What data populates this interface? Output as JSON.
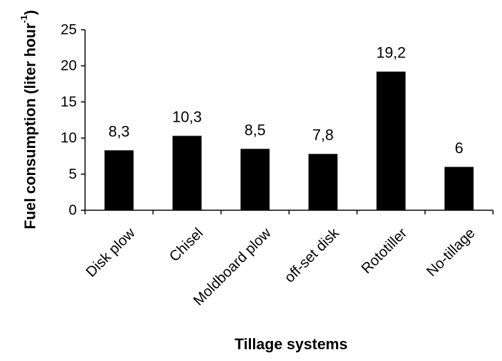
{
  "chart_data": {
    "type": "bar",
    "categories": [
      "Disk plow",
      "Chisel",
      "Moldboard plow",
      "off-set disk",
      "Rototiller",
      "No-tillage"
    ],
    "values": [
      8.3,
      10.3,
      8.5,
      7.8,
      19.2,
      6
    ],
    "data_labels": [
      "8,3",
      "10,3",
      "8,5",
      "7,8",
      "19,2",
      "6"
    ],
    "xlabel": "Tillage systems",
    "ylabel": {
      "main": "Fuel consumption (liter hour",
      "superscript": "-1",
      "close": ")"
    },
    "ylim": [
      0,
      25
    ],
    "yticks": [
      0,
      5,
      10,
      15,
      20,
      25
    ],
    "grid": false,
    "legend": "none",
    "bar_color": "#000000"
  }
}
